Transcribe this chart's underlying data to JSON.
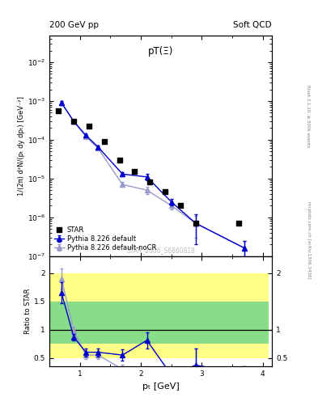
{
  "title_top": "200 GeV pp",
  "title_right": "Soft QCD",
  "panel_title": "pT(Ξ)",
  "watermark": "STAR_2006_S6860818",
  "right_label1": "Rivet 3.1.10, ≥ 500k events",
  "right_label2": "mcplots.cern.ch [arXiv:1306.3436]",
  "ylabel_main": "1/(2π) d²N/(pₜ dy dpₜ) [GeV⁻²]",
  "ylabel_ratio": "Ratio to STAR",
  "xlabel": "pₜ [GeV]",
  "star_x": [
    0.65,
    0.9,
    1.15,
    1.4,
    1.65,
    1.9,
    2.15,
    2.4,
    2.65,
    2.9,
    3.6
  ],
  "star_y": [
    0.00055,
    0.0003,
    0.00022,
    9e-05,
    3e-05,
    1.5e-05,
    8e-06,
    4.5e-06,
    2e-06,
    7e-07,
    7e-07
  ],
  "pythia_default_x": [
    0.7,
    0.9,
    1.1,
    1.3,
    1.7,
    2.1,
    2.5,
    2.9,
    3.7
  ],
  "pythia_default_y": [
    0.0009,
    0.0003,
    0.00013,
    6.5e-05,
    1.3e-05,
    1.1e-05,
    2.5e-06,
    7e-07,
    1.6e-07
  ],
  "pythia_default_yerr_lo": [
    0.0001,
    2e-05,
    1e-05,
    5e-06,
    1.5e-06,
    2e-06,
    5e-07,
    5e-07,
    8e-08
  ],
  "pythia_default_yerr_hi": [
    0.0001,
    2e-05,
    1e-05,
    5e-06,
    1.5e-06,
    2e-06,
    5e-07,
    5e-07,
    8e-08
  ],
  "pythia_nocr_x": [
    0.7,
    0.9,
    1.1,
    1.3,
    1.7,
    2.1,
    2.5,
    2.9,
    3.7
  ],
  "pythia_nocr_y": [
    0.0009,
    0.0003,
    0.00012,
    6e-05,
    7e-06,
    5e-06,
    2e-06,
    7e-07,
    1.6e-07
  ],
  "pythia_nocr_yerr_lo": [
    0.0001,
    2e-05,
    1e-05,
    5e-06,
    1e-06,
    1e-06,
    4e-07,
    4e-07,
    8e-08
  ],
  "pythia_nocr_yerr_hi": [
    0.0001,
    2e-05,
    1e-05,
    5e-06,
    1e-06,
    1e-06,
    4e-07,
    4e-07,
    8e-08
  ],
  "ratio_default_x": [
    0.7,
    0.9,
    1.1,
    1.3,
    1.7,
    2.1,
    2.5,
    2.9,
    3.7
  ],
  "ratio_default_y": [
    1.65,
    0.87,
    0.6,
    0.6,
    0.55,
    0.81,
    0.2,
    0.37,
    0.23
  ],
  "ratio_default_yerr": [
    0.18,
    0.06,
    0.07,
    0.07,
    0.1,
    0.14,
    0.08,
    0.3,
    0.12
  ],
  "ratio_nocr_x": [
    0.7,
    0.9,
    1.1,
    1.3,
    1.7,
    2.1,
    2.5,
    2.9,
    3.7
  ],
  "ratio_nocr_y": [
    1.9,
    0.98,
    0.55,
    0.55,
    0.3,
    0.25,
    0.2,
    0.37,
    0.23
  ],
  "ratio_nocr_yerr": [
    0.18,
    0.07,
    0.07,
    0.07,
    0.08,
    0.1,
    0.08,
    0.3,
    0.12
  ],
  "band_edges": [
    0.5,
    0.8,
    1.0,
    1.2,
    1.5,
    1.8,
    2.0,
    2.3,
    2.6,
    3.0,
    3.5,
    4.1
  ],
  "band_yellow_lo": 0.5,
  "band_yellow_hi": 2.0,
  "band_green_lo": 0.75,
  "band_green_hi": 1.5,
  "color_default": "#0000cc",
  "color_nocr": "#9999cc",
  "color_star": "black",
  "ylim_main": [
    1e-07,
    0.05
  ],
  "ylim_ratio": [
    0.35,
    2.3
  ],
  "xlim": [
    0.5,
    4.15
  ]
}
